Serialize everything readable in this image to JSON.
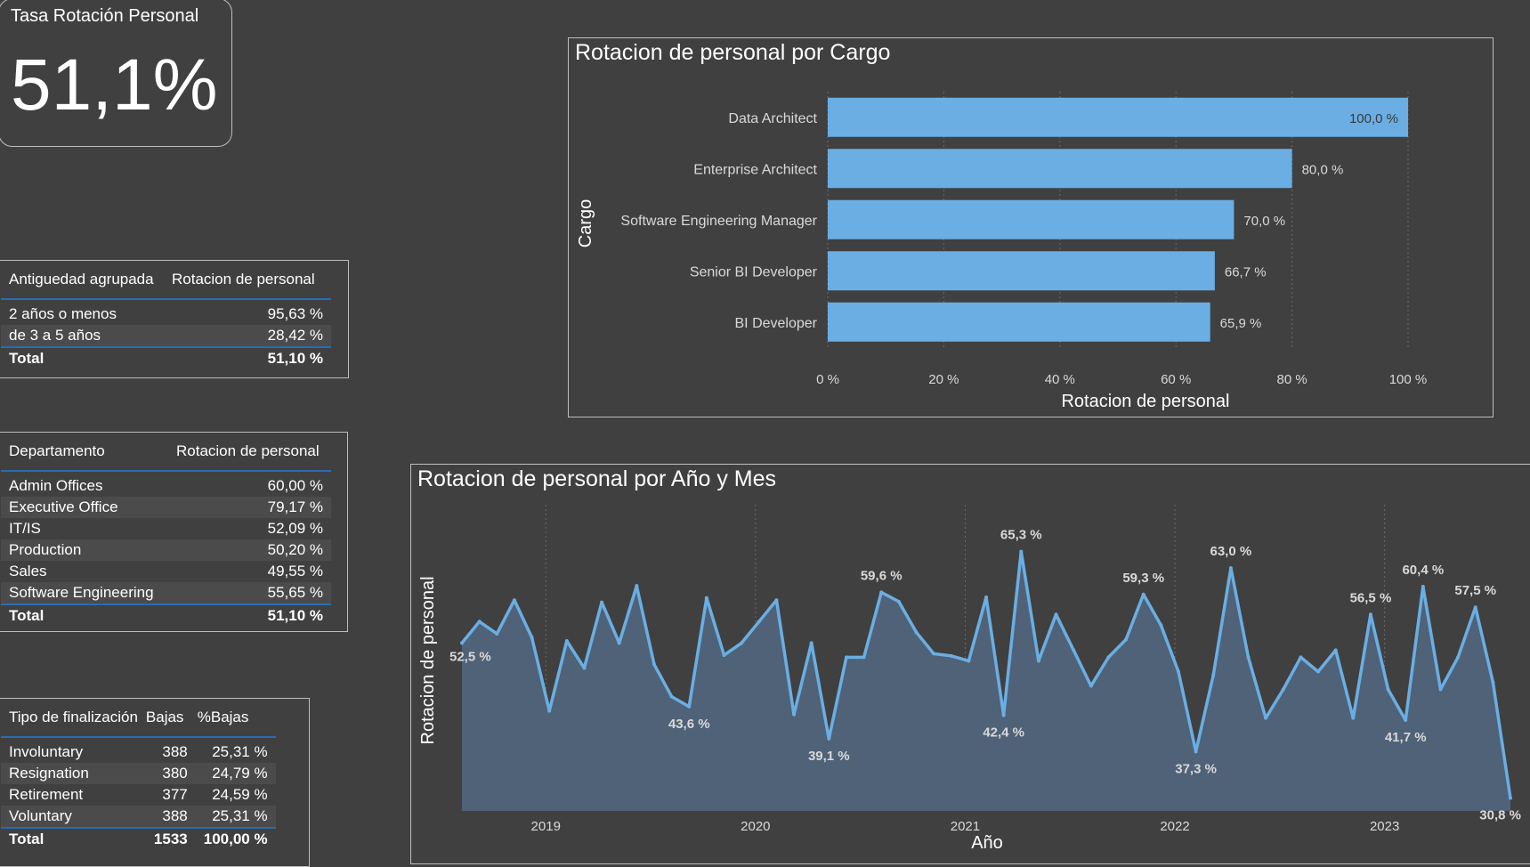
{
  "kpi": {
    "title": "Tasa Rotación Personal",
    "value": "51,1%"
  },
  "antiguedad_table": {
    "headers": [
      "Antiguedad agrupada",
      "Rotacion de personal"
    ],
    "rows": [
      [
        "2 años o menos",
        "95,63 %"
      ],
      [
        "de 3 a 5 años",
        "28,42 %"
      ]
    ],
    "total": [
      "Total",
      "51,10 %"
    ]
  },
  "departamento_table": {
    "headers": [
      "Departamento",
      "Rotacion de personal"
    ],
    "rows": [
      [
        "Admin Offices",
        "60,00 %"
      ],
      [
        "Executive Office",
        "79,17 %"
      ],
      [
        "IT/IS",
        "52,09 %"
      ],
      [
        "Production",
        "50,20 %"
      ],
      [
        "Sales",
        "49,55 %"
      ],
      [
        "Software Engineering",
        "55,65 %"
      ]
    ],
    "total": [
      "Total",
      "51,10 %"
    ]
  },
  "finalizacion_table": {
    "headers": [
      "Tipo de finalización",
      "Bajas",
      "%Bajas"
    ],
    "rows": [
      [
        "Involuntary",
        "388",
        "25,31 %"
      ],
      [
        "Resignation",
        "380",
        "24,79 %"
      ],
      [
        "Retirement",
        "377",
        "24,59 %"
      ],
      [
        "Voluntary",
        "388",
        "25,31 %"
      ]
    ],
    "total": [
      "Total",
      "1533",
      "100,00 %"
    ]
  },
  "colors": {
    "background": "#404040",
    "bar": "#6aaee3",
    "line": "#6aaee3",
    "area": "#4f6277",
    "table_rule": "#2a6cb0"
  },
  "chart_data": [
    {
      "type": "bar",
      "orientation": "horizontal",
      "title": "Rotacion de personal por Cargo",
      "xlabel": "Rotacion de personal",
      "ylabel": "Cargo",
      "categories": [
        "Data Architect",
        "Enterprise Architect",
        "Software Engineering Manager",
        "Senior BI Developer",
        "BI Developer"
      ],
      "values": [
        100.0,
        80.0,
        70.0,
        66.7,
        65.9
      ],
      "data_labels": [
        "100,0 %",
        "80,0 %",
        "70,0 %",
        "66,7 %",
        "65,9 %"
      ],
      "xlim": [
        0,
        100
      ],
      "xticks": [
        "0 %",
        "20 %",
        "40 %",
        "60 %",
        "80 %",
        "100 %"
      ],
      "grid": true
    },
    {
      "type": "area",
      "title": "Rotacion de personal por Año y Mes",
      "xlabel": "Año",
      "ylabel": "Rotacion de personal",
      "xticks": [
        "2019",
        "2020",
        "2021",
        "2022",
        "2023"
      ],
      "x_start": "2018-08",
      "values": [
        52.5,
        55.5,
        53.8,
        58.5,
        53.3,
        43.0,
        52.8,
        49.0,
        58.2,
        52.5,
        60.5,
        49.5,
        45.0,
        43.6,
        58.8,
        50.8,
        52.5,
        55.5,
        58.5,
        42.5,
        52.5,
        39.1,
        50.5,
        50.5,
        59.6,
        58.3,
        54.0,
        51.0,
        50.7,
        50.0,
        58.9,
        42.4,
        65.3,
        50.0,
        56.5,
        51.5,
        46.5,
        50.5,
        53.0,
        59.3,
        55.0,
        48.5,
        37.3,
        48.0,
        63.0,
        50.5,
        42.0,
        46.0,
        50.5,
        48.5,
        51.5,
        42.0,
        56.5,
        46.0,
        41.7,
        60.4,
        46.0,
        50.5,
        57.5,
        47.0,
        30.8
      ],
      "annotations": [
        {
          "index": 0,
          "label": "52,5 %"
        },
        {
          "index": 13,
          "label": "43,6 %"
        },
        {
          "index": 21,
          "label": "39,1 %"
        },
        {
          "index": 24,
          "label": "59,6 %"
        },
        {
          "index": 31,
          "label": "42,4 %"
        },
        {
          "index": 32,
          "label": "65,3 %"
        },
        {
          "index": 39,
          "label": "59,3 %"
        },
        {
          "index": 42,
          "label": "37,3 %"
        },
        {
          "index": 44,
          "label": "63,0 %"
        },
        {
          "index": 52,
          "label": "56,5 %"
        },
        {
          "index": 54,
          "label": "41,7 %"
        },
        {
          "index": 55,
          "label": "60,4 %"
        },
        {
          "index": 58,
          "label": "57,5 %"
        },
        {
          "index": 60,
          "label": "30,8 %"
        }
      ],
      "grid": true
    }
  ]
}
